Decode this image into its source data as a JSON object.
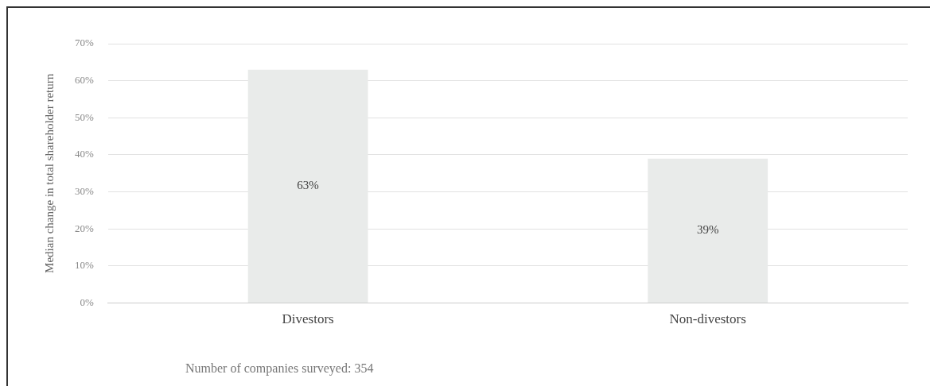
{
  "chart_data": {
    "type": "bar",
    "ylabel": "Median change in total shareholder return",
    "categories": [
      "Divestors",
      "Non-divestors"
    ],
    "values": [
      63,
      39
    ],
    "value_labels": [
      "63%",
      "39%"
    ],
    "color": "#e9ebea",
    "ylim": [
      0,
      70
    ],
    "yticks": [
      {
        "value": 0,
        "label": "0%"
      },
      {
        "value": 10,
        "label": "10%"
      },
      {
        "value": 20,
        "label": "20%"
      },
      {
        "value": 30,
        "label": "30%"
      },
      {
        "value": 40,
        "label": "40%"
      },
      {
        "value": 50,
        "label": "50%"
      },
      {
        "value": 60,
        "label": "60%"
      },
      {
        "value": 70,
        "label": "70%"
      }
    ],
    "grid": "y",
    "legend": false,
    "annotations": [
      "Number of companies surveyed: 354"
    ]
  }
}
